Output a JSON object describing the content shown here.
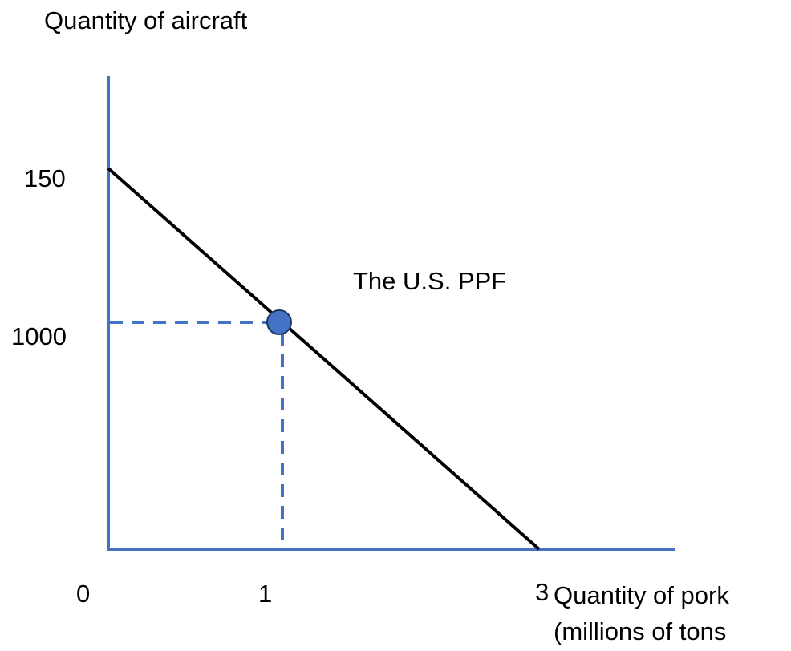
{
  "diagram": {
    "y_axis_label": "Quantity of aircraft",
    "x_axis_label": "Quantity of pork",
    "x_axis_label_sub": "(millions of tons",
    "y_ticks": [
      150,
      1000
    ],
    "x_ticks": [
      0,
      1,
      3
    ],
    "curve_label": "The U.S. PPF"
  }
}
